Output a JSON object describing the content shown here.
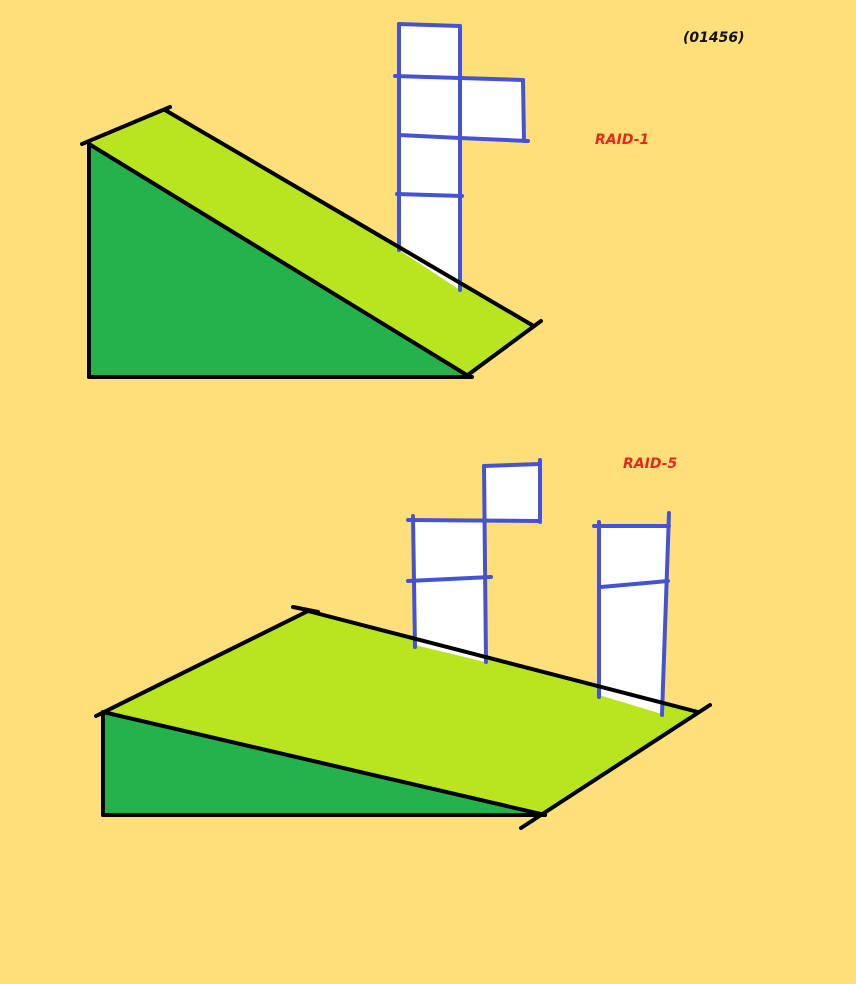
{
  "reference": "(01456)",
  "diagrams": [
    {
      "id": "raid-1",
      "label": "RAID-1"
    },
    {
      "id": "raid-5",
      "label": "RAID-5"
    }
  ],
  "colors": {
    "background": "#fedf79",
    "ramp_side": "#24b24c",
    "ramp_top": "#b8e420",
    "outline": "#000000",
    "block_fill": "#ffffff",
    "block_stroke": "#4553d2",
    "label_red": "#e8281e"
  }
}
